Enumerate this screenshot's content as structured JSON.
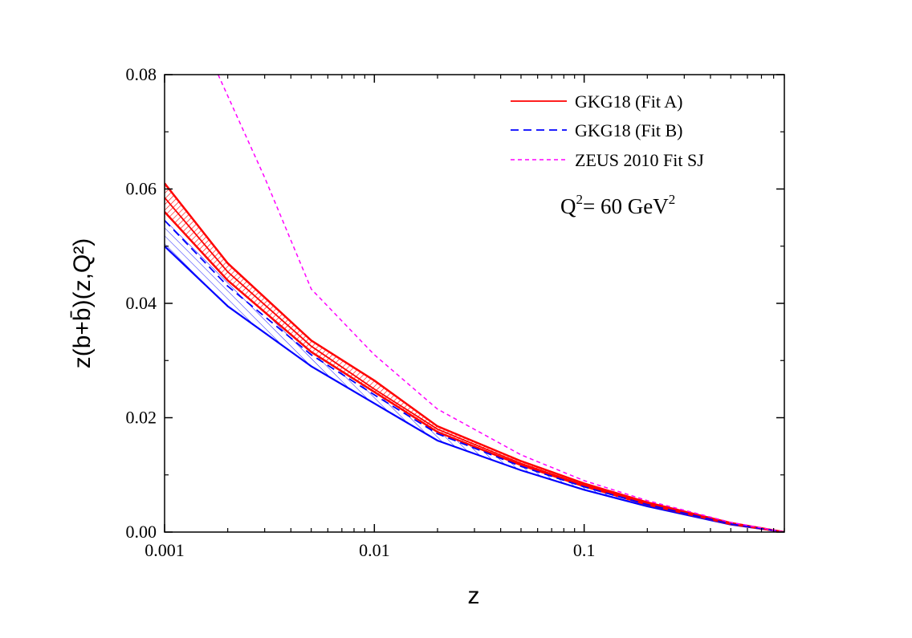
{
  "chart_data": {
    "type": "line",
    "xlabel": "z",
    "ylabel": "z(b+b̄)(z,Q²)",
    "xscale": "log",
    "xlim": [
      0.001,
      0.9
    ],
    "ylim": [
      0,
      0.08
    ],
    "x_ticks": [
      {
        "value": 0.001,
        "label": "0.001"
      },
      {
        "value": 0.01,
        "label": "0.01"
      },
      {
        "value": 0.1,
        "label": "0.1"
      }
    ],
    "y_ticks": [
      {
        "value": 0.0,
        "label": "0.00"
      },
      {
        "value": 0.02,
        "label": "0.02"
      },
      {
        "value": 0.04,
        "label": "0.04"
      },
      {
        "value": 0.06,
        "label": "0.06"
      },
      {
        "value": 0.08,
        "label": "0.08"
      }
    ],
    "annotation": {
      "main": "Q",
      "sup1": "2",
      "mid": "= 60 GeV",
      "sup2": "2"
    },
    "legend_position": "top-right",
    "series": [
      {
        "name": "GKG18 (Fit A)",
        "color": "#ff0000",
        "style": "solid",
        "x": [
          0.001,
          0.002,
          0.005,
          0.01,
          0.02,
          0.05,
          0.1,
          0.2,
          0.5,
          0.9
        ],
        "y": [
          0.0585,
          0.0455,
          0.0325,
          0.025,
          0.018,
          0.012,
          0.0082,
          0.005,
          0.0015,
          0.0
        ],
        "band_upper": [
          0.061,
          0.047,
          0.0335,
          0.0265,
          0.0185,
          0.0124,
          0.0085,
          0.0052,
          0.0016,
          0.0
        ],
        "band_lower": [
          0.056,
          0.044,
          0.0315,
          0.0245,
          0.0175,
          0.0117,
          0.008,
          0.0048,
          0.0014,
          0.0
        ]
      },
      {
        "name": "GKG18 (Fit B)",
        "color": "#0000ff",
        "style": "dashed",
        "x": [
          0.001,
          0.002,
          0.005,
          0.01,
          0.02,
          0.05,
          0.1,
          0.2,
          0.5,
          0.9
        ],
        "y": [
          0.0545,
          0.043,
          0.031,
          0.024,
          0.0172,
          0.0115,
          0.0079,
          0.0048,
          0.0014,
          0.0
        ],
        "band_upper": [
          0.0575,
          0.045,
          0.0325,
          0.025,
          0.0178,
          0.0119,
          0.0081,
          0.005,
          0.0015,
          0.0
        ],
        "band_lower": [
          0.05,
          0.0395,
          0.029,
          0.0225,
          0.016,
          0.0108,
          0.0074,
          0.0045,
          0.0013,
          0.0
        ]
      },
      {
        "name": "ZEUS 2010 Fit SJ",
        "color": "#ff00ff",
        "style": "short-dashed",
        "x": [
          0.0018,
          0.003,
          0.005,
          0.01,
          0.02,
          0.05,
          0.1,
          0.2,
          0.5,
          0.9
        ],
        "y": [
          0.08,
          0.062,
          0.0425,
          0.031,
          0.0215,
          0.0135,
          0.009,
          0.0055,
          0.0017,
          0.0
        ]
      }
    ]
  }
}
